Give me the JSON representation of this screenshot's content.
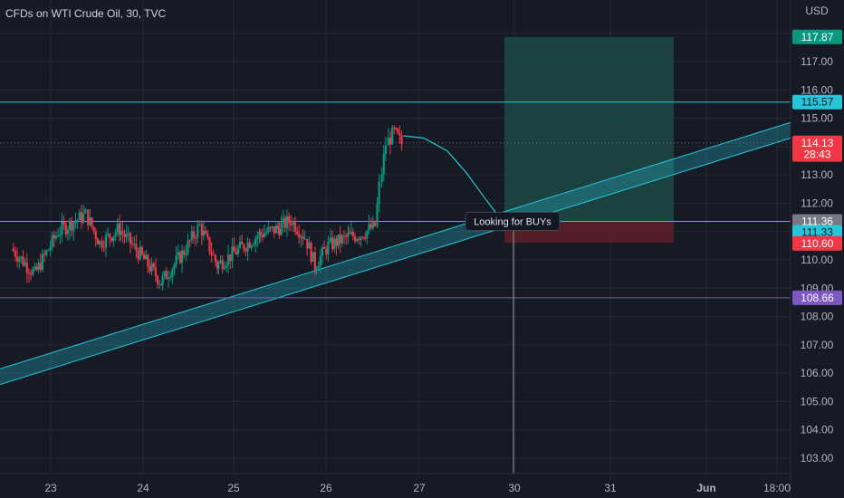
{
  "chart_data": {
    "type": "candlestick",
    "title": "CFDs on WTI Crude Oil, 30, TVC",
    "currency": "USD",
    "y_ticks": [
      "117.00",
      "116.00",
      "115.00",
      "113.00",
      "112.00",
      "110.00",
      "109.00",
      "108.00",
      "107.00",
      "106.00",
      "105.00",
      "104.00",
      "103.00"
    ],
    "x_ticks": [
      "23",
      "24",
      "25",
      "26",
      "27",
      "30",
      "31",
      "Jun",
      "18:00"
    ],
    "ylim": [
      102.5,
      118.6
    ],
    "horizontal_levels": [
      {
        "price": 115.57,
        "color": "#26c6da"
      },
      {
        "price": 111.36,
        "color": "#26c6da"
      },
      {
        "price": 108.66,
        "color": "#7e57c2"
      }
    ],
    "trend_channel": {
      "start": {
        "x": "22 (start)",
        "lower": 105.6,
        "upper": 106.15
      },
      "end": {
        "x": "Jun 18:00",
        "lower": 114.3,
        "upper": 114.85
      }
    },
    "position": {
      "entry": 111.36,
      "target": 117.87,
      "stop": 110.6,
      "start_x": "Friday 27 (late)",
      "end_x": "31 (late)"
    },
    "annotation": "Looking for BUYs",
    "price_badges": [
      {
        "text": "117.87",
        "price": 117.87,
        "bg": "#089981",
        "fg": "#ffffff"
      },
      {
        "text": "115.57",
        "price": 115.57,
        "bg": "#26c6da",
        "fg": "#131722"
      },
      {
        "text": "114.13",
        "price": 114.13,
        "bg": "#f23645",
        "fg": "#ffffff"
      },
      {
        "text": "28:43",
        "price": 113.72,
        "bg": "#f23645",
        "fg": "#ffffff"
      },
      {
        "text": "111.36",
        "price": 111.36,
        "bg": "#787b86",
        "fg": "#ffffff"
      },
      {
        "text": "111.33",
        "price": 110.97,
        "bg": "#26c6da",
        "fg": "#131722"
      },
      {
        "text": "110.60",
        "price": 110.58,
        "bg": "#f23645",
        "fg": "#ffffff"
      },
      {
        "text": "108.66",
        "price": 108.66,
        "bg": "#7e57c2",
        "fg": "#ffffff"
      }
    ],
    "last_price": 114.13,
    "colors": {
      "background": "#161a25",
      "grid": "#242832",
      "up": "#089981",
      "down": "#f23645",
      "channel": "#26c6da",
      "target_zone": "#1a4a47",
      "stop_zone": "#5a1f28"
    },
    "candles_note": "about 190 half-hour bars, 22 May to 27 May",
    "projection_path": [
      [
        114.5,
        114.38
      ],
      [
        114.7,
        114.3
      ],
      [
        114.95,
        113.9
      ],
      [
        115.15,
        113.2
      ],
      [
        115.35,
        112.3
      ],
      [
        115.45,
        111.6
      ]
    ],
    "anchors": [
      {
        "day": 22.6,
        "price": 110.4
      },
      {
        "day": 22.85,
        "price": 109.5
      },
      {
        "day": 23.1,
        "price": 111.0
      },
      {
        "day": 23.4,
        "price": 111.6
      },
      {
        "day": 23.55,
        "price": 110.6
      },
      {
        "day": 23.75,
        "price": 111.1
      },
      {
        "day": 24.0,
        "price": 110.1
      },
      {
        "day": 24.2,
        "price": 109.2
      },
      {
        "day": 24.45,
        "price": 110.3
      },
      {
        "day": 24.62,
        "price": 111.2
      },
      {
        "day": 24.8,
        "price": 109.8
      },
      {
        "day": 25.05,
        "price": 110.4
      },
      {
        "day": 25.25,
        "price": 110.9
      },
      {
        "day": 25.45,
        "price": 111.1
      },
      {
        "day": 25.6,
        "price": 111.4
      },
      {
        "day": 25.75,
        "price": 110.8
      },
      {
        "day": 25.85,
        "price": 109.8
      },
      {
        "day": 26.0,
        "price": 110.5
      },
      {
        "day": 26.2,
        "price": 110.8
      },
      {
        "day": 26.35,
        "price": 110.9
      },
      {
        "day": 26.5,
        "price": 111.2
      },
      {
        "day": 26.55,
        "price": 112.6
      },
      {
        "day": 26.62,
        "price": 114.1
      },
      {
        "day": 26.7,
        "price": 114.5
      },
      {
        "day": 26.78,
        "price": 114.1
      }
    ]
  }
}
